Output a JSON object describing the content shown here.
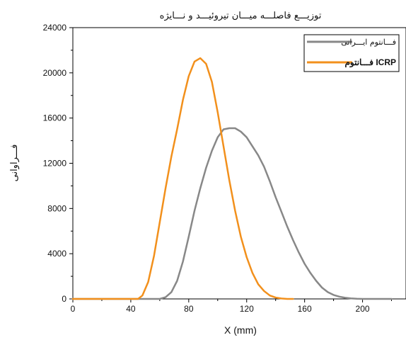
{
  "chart_data": {
    "type": "line",
    "title": "توزیـــع فاصلـــه میـــان تیروئیـــد و نـــایژه",
    "xlabel": "X (mm)",
    "ylabel": "فـــراوانی",
    "xlim": [
      0,
      230
    ],
    "ylim": [
      0,
      24000
    ],
    "xticks": [
      "0",
      "40",
      "80",
      "120",
      "160",
      "200"
    ],
    "yticks": [
      "0",
      "4000",
      "8000",
      "12000",
      "16000",
      "20000",
      "24000"
    ],
    "legend_position": "top-right",
    "grid": false,
    "series": [
      {
        "name": "فـــانتوم ایـــرانی",
        "color": "#888888",
        "x": [
          0,
          60,
          64,
          68,
          72,
          76,
          80,
          84,
          88,
          92,
          96,
          100,
          104,
          108,
          112,
          116,
          120,
          124,
          128,
          132,
          136,
          140,
          144,
          148,
          152,
          156,
          160,
          164,
          168,
          172,
          176,
          180,
          184,
          188,
          192,
          196,
          200,
          210,
          220
        ],
        "y": [
          0,
          0,
          150,
          600,
          1600,
          3300,
          5500,
          7800,
          9800,
          11600,
          13100,
          14300,
          15000,
          15100,
          15100,
          14800,
          14300,
          13500,
          12700,
          11700,
          10400,
          9000,
          7700,
          6400,
          5200,
          4100,
          3100,
          2300,
          1600,
          1000,
          600,
          350,
          200,
          100,
          50,
          20,
          0,
          0,
          0
        ]
      },
      {
        "name": "فـــانتوم ICRP",
        "color": "#f2901c",
        "x": [
          0,
          45,
          48,
          52,
          56,
          60,
          64,
          68,
          72,
          76,
          80,
          84,
          88,
          92,
          96,
          100,
          104,
          108,
          112,
          116,
          120,
          124,
          128,
          132,
          136,
          140,
          144,
          148,
          152
        ],
        "y": [
          0,
          0,
          300,
          1500,
          3800,
          6800,
          9800,
          12600,
          15000,
          17600,
          19700,
          21000,
          21300,
          20800,
          19200,
          16500,
          13500,
          10500,
          7800,
          5500,
          3700,
          2300,
          1300,
          700,
          300,
          120,
          40,
          0,
          0
        ]
      }
    ]
  }
}
